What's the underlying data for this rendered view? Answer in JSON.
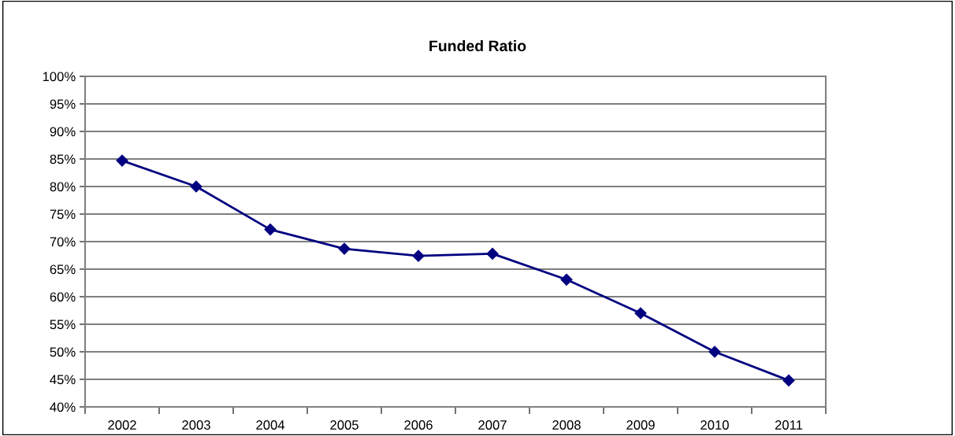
{
  "chart_data": {
    "type": "line",
    "title": "Funded Ratio",
    "categories": [
      "2002",
      "2003",
      "2004",
      "2005",
      "2006",
      "2007",
      "2008",
      "2009",
      "2010",
      "2011"
    ],
    "series": [
      {
        "color": "#000080",
        "values": [
          84.7,
          80.0,
          72.2,
          68.7,
          67.4,
          67.8,
          63.1,
          57.0,
          50.0,
          44.8
        ]
      }
    ],
    "ylim": [
      40,
      100
    ],
    "yticks": [
      {
        "value": 40,
        "label": "40%"
      },
      {
        "value": 45,
        "label": "45%"
      },
      {
        "value": 50,
        "label": "50%"
      },
      {
        "value": 55,
        "label": "55%"
      },
      {
        "value": 60,
        "label": "60%"
      },
      {
        "value": 65,
        "label": "65%"
      },
      {
        "value": 70,
        "label": "70%"
      },
      {
        "value": 75,
        "label": "75%"
      },
      {
        "value": 80,
        "label": "80%"
      },
      {
        "value": 85,
        "label": "85%"
      },
      {
        "value": 90,
        "label": "90%"
      },
      {
        "value": 95,
        "label": "95%"
      },
      {
        "value": 100,
        "label": "100%"
      }
    ],
    "grid": "y",
    "marker": "diamond",
    "line_style": "solid",
    "legend": false
  }
}
